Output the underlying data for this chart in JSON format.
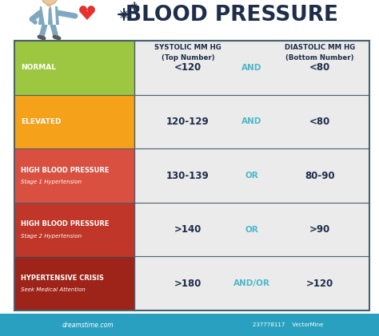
{
  "title": "BLOOD PRESSURE",
  "col_header_left": "SYSTOLIC MM HG\n(Top Number)",
  "col_header_right": "DIASTOLIC MM HG\n(Bottom Number)",
  "rows": [
    {
      "label_main": "NORMAL",
      "label_sub": "",
      "bg_color": "#9dc741",
      "systolic": "<120",
      "connector": "AND",
      "diastolic": "<80"
    },
    {
      "label_main": "ELEVATED",
      "label_sub": "",
      "bg_color": "#f5a11a",
      "systolic": "120-129",
      "connector": "AND",
      "diastolic": "<80"
    },
    {
      "label_main": "HIGH BLOOD PRESSURE",
      "label_sub": "Stage 1 Hypertension",
      "bg_color": "#d95040",
      "systolic": "130-139",
      "connector": "OR",
      "diastolic": "80-90"
    },
    {
      "label_main": "HIGH BLOOD PRESSURE",
      "label_sub": "Stage 2 Hypertension",
      "bg_color": "#c03628",
      "systolic": ">140",
      "connector": "OR",
      "diastolic": ">90"
    },
    {
      "label_main": "HYPERTENSIVE CRISIS",
      "label_sub": "Seek Medical Attention",
      "bg_color": "#9e2318",
      "systolic": ">180",
      "connector": "AND/OR",
      "diastolic": ">120"
    }
  ],
  "background_color": "#ffffff",
  "table_right_bg": "#ebebeb",
  "connector_color": "#4db8c8",
  "label_text_color": "#ffffff",
  "header_text_color": "#1e2d4a",
  "value_text_color": "#1e2d4a",
  "border_color": "#4a6070",
  "bottom_bar_color": "#2aa0c0",
  "bottom_bar_text": "237778117   ●  VectorMine",
  "dreamstime_text": "dreamstime.com"
}
